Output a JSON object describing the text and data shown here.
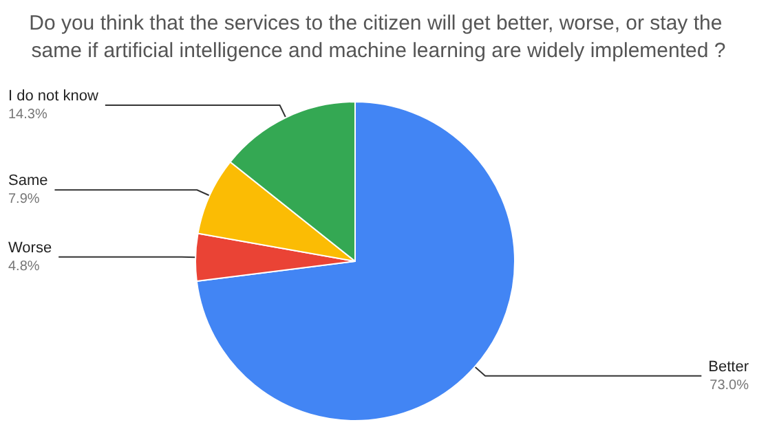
{
  "chart_data": {
    "type": "pie",
    "title": "Do you think that the services to the citizen will get better, worse, or stay the same if artificial intelligence and machine learning are widely implemented ?",
    "categories": [
      "Better",
      "Worse",
      "Same",
      "I do not know"
    ],
    "values": [
      73.0,
      4.8,
      7.9,
      14.3
    ],
    "colors": [
      "#4285f4",
      "#ea4335",
      "#fbbc04",
      "#34a853"
    ],
    "value_labels": [
      "73.0%",
      "4.8%",
      "7.9%",
      "14.3%"
    ],
    "legend": false
  }
}
